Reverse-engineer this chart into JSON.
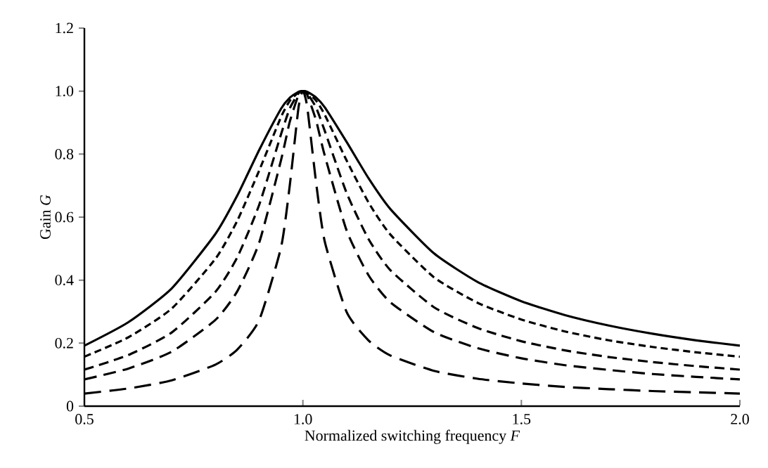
{
  "chart_data": {
    "type": "line",
    "xlabel": "Normalized switching frequency *F*",
    "ylabel": "Gain *G*",
    "x": [
      0.5,
      0.6,
      0.7,
      0.8,
      0.85,
      0.9,
      0.95,
      0.97,
      0.99,
      1.0,
      1.01,
      1.03,
      1.05,
      1.1,
      1.15,
      1.2,
      1.3,
      1.4,
      1.5,
      1.6,
      1.7,
      1.8,
      1.9,
      2.0
    ],
    "series": [
      {
        "color": "#000000",
        "line_style": "solid",
        "values": [
          0.192,
          0.266,
          0.374,
          0.547,
          0.669,
          0.813,
          0.944,
          0.979,
          0.998,
          1.0,
          0.998,
          0.98,
          0.949,
          0.839,
          0.724,
          0.626,
          0.485,
          0.394,
          0.333,
          0.289,
          0.256,
          0.23,
          0.209,
          0.192
        ]
      },
      {
        "color": "#000000",
        "line_style": "dashed",
        "values": [
          0.157,
          0.218,
          0.31,
          0.468,
          0.589,
          0.748,
          0.918,
          0.969,
          0.996,
          1.0,
          0.996,
          0.97,
          0.925,
          0.78,
          0.647,
          0.545,
          0.409,
          0.328,
          0.275,
          0.237,
          0.209,
          0.188,
          0.171,
          0.157
        ]
      },
      {
        "color": "#000000",
        "line_style": "dashed",
        "values": [
          0.116,
          0.162,
          0.234,
          0.363,
          0.473,
          0.639,
          0.863,
          0.945,
          0.993,
          1.0,
          0.993,
          0.948,
          0.874,
          0.677,
          0.531,
          0.432,
          0.314,
          0.248,
          0.206,
          0.177,
          0.156,
          0.14,
          0.127,
          0.116
        ]
      },
      {
        "color": "#000000",
        "line_style": "dashed",
        "values": [
          0.085,
          0.119,
          0.173,
          0.274,
          0.365,
          0.519,
          0.781,
          0.903,
          0.988,
          1.0,
          0.988,
          0.908,
          0.796,
          0.558,
          0.416,
          0.33,
          0.235,
          0.184,
          0.152,
          0.13,
          0.115,
          0.102,
          0.093,
          0.085
        ]
      },
      {
        "color": "#000000",
        "line_style": "dashed",
        "values": [
          0.04,
          0.056,
          0.082,
          0.132,
          0.18,
          0.273,
          0.504,
          0.701,
          0.948,
          1.0,
          0.949,
          0.712,
          0.523,
          0.299,
          0.209,
          0.161,
          0.112,
          0.087,
          0.072,
          0.061,
          0.054,
          0.048,
          0.044,
          0.04
        ]
      }
    ],
    "xlim": [
      0.5,
      2.0
    ],
    "xticks": [
      0.5,
      {
        "value": 1.0,
        "label": "1.0"
      },
      1.5,
      {
        "value": 2.0,
        "label": "2.0"
      }
    ],
    "ylim": [
      0,
      1.2
    ],
    "yticks": [
      0,
      0.2,
      0.4,
      0.6,
      0.8,
      {
        "value": 1.0,
        "label": "1.0"
      },
      1.2
    ],
    "marker": "none"
  }
}
